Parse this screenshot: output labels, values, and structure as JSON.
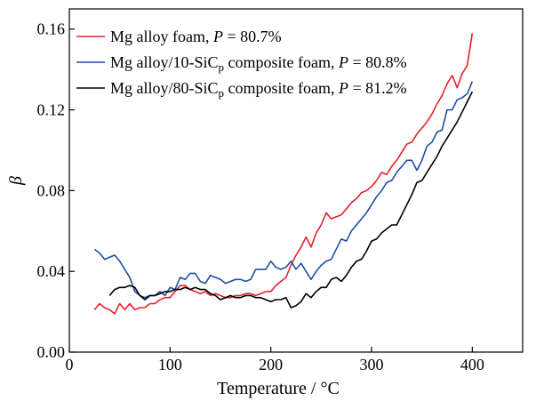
{
  "chart_data": {
    "type": "line",
    "title": "",
    "xlabel": "Temperature / °C",
    "ylabel": "β",
    "xlim": [
      0,
      450
    ],
    "ylim": [
      0,
      0.17
    ],
    "xticks": [
      0,
      100,
      200,
      300,
      400
    ],
    "xtick_labels": [
      "0",
      "100",
      "200",
      "300",
      "400"
    ],
    "yticks": [
      0.0,
      0.04,
      0.08,
      0.12,
      0.16
    ],
    "ytick_labels": [
      "0.00",
      "0.04",
      "0.08",
      "0.12",
      "0.16"
    ],
    "grid": false,
    "legend_position": "top-left",
    "series": [
      {
        "name": "Mg alloy foam, P = 80.7%",
        "legend": {
          "pre": "Mg alloy foam, ",
          "italic": "P",
          "post": " = 80.7%",
          "sub": ""
        },
        "color": "#e8202a",
        "x": [
          25,
          30,
          35,
          40,
          45,
          50,
          55,
          60,
          65,
          70,
          75,
          80,
          85,
          90,
          95,
          100,
          105,
          110,
          115,
          120,
          125,
          130,
          135,
          140,
          145,
          150,
          155,
          160,
          165,
          170,
          175,
          180,
          185,
          190,
          195,
          200,
          205,
          210,
          215,
          220,
          225,
          230,
          235,
          240,
          245,
          250,
          255,
          260,
          265,
          270,
          275,
          280,
          285,
          290,
          295,
          300,
          305,
          310,
          315,
          320,
          325,
          330,
          335,
          340,
          345,
          350,
          355,
          360,
          365,
          370,
          375,
          380,
          385,
          390,
          395,
          400
        ],
        "y": [
          0.021,
          0.024,
          0.022,
          0.021,
          0.019,
          0.024,
          0.021,
          0.024,
          0.021,
          0.022,
          0.022,
          0.024,
          0.024,
          0.026,
          0.027,
          0.027,
          0.03,
          0.033,
          0.033,
          0.031,
          0.03,
          0.029,
          0.03,
          0.028,
          0.029,
          0.028,
          0.027,
          0.027,
          0.028,
          0.028,
          0.029,
          0.029,
          0.028,
          0.029,
          0.03,
          0.03,
          0.033,
          0.035,
          0.037,
          0.043,
          0.048,
          0.052,
          0.057,
          0.052,
          0.059,
          0.063,
          0.069,
          0.066,
          0.067,
          0.068,
          0.071,
          0.074,
          0.076,
          0.079,
          0.08,
          0.082,
          0.085,
          0.089,
          0.088,
          0.092,
          0.095,
          0.099,
          0.103,
          0.104,
          0.108,
          0.111,
          0.114,
          0.118,
          0.123,
          0.127,
          0.133,
          0.137,
          0.131,
          0.138,
          0.142,
          0.158
        ]
      },
      {
        "name": "Mg alloy/10-SiCp composite foam, P = 80.8%",
        "legend": {
          "pre": "Mg alloy/10-SiC",
          "sub": "p",
          "post": " composite foam, ",
          "italic": "P",
          "post2": " = 80.8%"
        },
        "color": "#1f4fa3",
        "x": [
          25,
          30,
          35,
          40,
          45,
          50,
          55,
          60,
          65,
          70,
          75,
          80,
          85,
          90,
          95,
          100,
          105,
          110,
          115,
          120,
          125,
          130,
          135,
          140,
          145,
          150,
          155,
          160,
          165,
          170,
          175,
          180,
          185,
          190,
          195,
          200,
          205,
          210,
          215,
          220,
          225,
          230,
          235,
          240,
          245,
          250,
          255,
          260,
          265,
          270,
          275,
          280,
          285,
          290,
          295,
          300,
          305,
          310,
          315,
          320,
          325,
          330,
          335,
          340,
          345,
          350,
          355,
          360,
          365,
          370,
          375,
          380,
          385,
          390,
          395,
          400
        ],
        "y": [
          0.051,
          0.049,
          0.046,
          0.047,
          0.048,
          0.045,
          0.041,
          0.037,
          0.03,
          0.028,
          0.027,
          0.028,
          0.028,
          0.03,
          0.028,
          0.032,
          0.031,
          0.037,
          0.036,
          0.039,
          0.039,
          0.035,
          0.034,
          0.038,
          0.037,
          0.036,
          0.034,
          0.035,
          0.036,
          0.036,
          0.035,
          0.036,
          0.041,
          0.041,
          0.041,
          0.045,
          0.042,
          0.041,
          0.042,
          0.045,
          0.041,
          0.044,
          0.04,
          0.036,
          0.04,
          0.043,
          0.045,
          0.046,
          0.051,
          0.056,
          0.055,
          0.06,
          0.063,
          0.066,
          0.069,
          0.073,
          0.077,
          0.08,
          0.084,
          0.085,
          0.089,
          0.092,
          0.095,
          0.095,
          0.09,
          0.095,
          0.102,
          0.104,
          0.109,
          0.11,
          0.12,
          0.12,
          0.125,
          0.126,
          0.128,
          0.134
        ]
      },
      {
        "name": "Mg alloy/80-SiCp composite foam, P = 81.2%",
        "legend": {
          "pre": "Mg alloy/80-SiC",
          "sub": "p",
          "post": " composite foam, ",
          "italic": "P",
          "post2": " = 81.2%"
        },
        "color": "#000000",
        "x": [
          40,
          45,
          50,
          55,
          60,
          65,
          70,
          75,
          80,
          85,
          90,
          95,
          100,
          105,
          110,
          115,
          120,
          125,
          130,
          135,
          140,
          145,
          150,
          155,
          160,
          165,
          170,
          175,
          180,
          185,
          190,
          195,
          200,
          205,
          210,
          215,
          220,
          225,
          230,
          235,
          240,
          245,
          250,
          255,
          260,
          265,
          270,
          275,
          280,
          285,
          290,
          295,
          300,
          305,
          310,
          315,
          320,
          325,
          330,
          335,
          340,
          345,
          350,
          355,
          360,
          365,
          370,
          375,
          380,
          385,
          390,
          395,
          400
        ],
        "y": [
          0.028,
          0.031,
          0.032,
          0.032,
          0.033,
          0.032,
          0.028,
          0.026,
          0.028,
          0.028,
          0.029,
          0.03,
          0.03,
          0.031,
          0.031,
          0.032,
          0.031,
          0.032,
          0.031,
          0.031,
          0.029,
          0.028,
          0.026,
          0.027,
          0.028,
          0.027,
          0.027,
          0.028,
          0.028,
          0.027,
          0.027,
          0.026,
          0.025,
          0.026,
          0.026,
          0.027,
          0.022,
          0.023,
          0.025,
          0.029,
          0.027,
          0.03,
          0.032,
          0.032,
          0.036,
          0.037,
          0.035,
          0.038,
          0.042,
          0.045,
          0.046,
          0.05,
          0.055,
          0.056,
          0.059,
          0.061,
          0.063,
          0.063,
          0.068,
          0.073,
          0.078,
          0.084,
          0.085,
          0.089,
          0.093,
          0.097,
          0.102,
          0.106,
          0.11,
          0.114,
          0.119,
          0.124,
          0.129
        ]
      }
    ]
  }
}
